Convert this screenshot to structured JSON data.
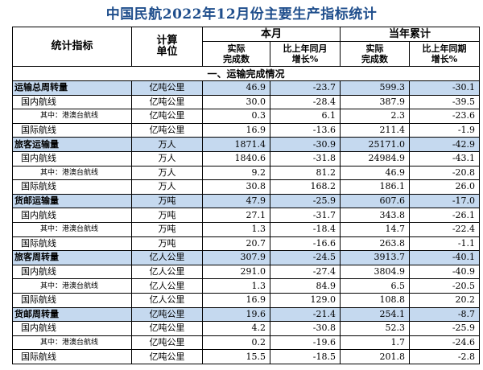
{
  "title": "中国民航2022年12月份主要生产指标统计",
  "header": {
    "indicator": "统计指标",
    "unit_line1": "计算",
    "unit_line2": "单位",
    "month": "本月",
    "ytd": "当年累计",
    "actual_line1": "实际",
    "actual_line2": "完成数",
    "yoy_month_line1": "比上年同月",
    "yoy_month_line2": "增长%",
    "actual2_line1": "实际",
    "actual2_line2": "完成数",
    "yoy_period_line1": "比上年同期",
    "yoy_period_line2": "增长%"
  },
  "section": "一、运输完成情况",
  "rows": [
    {
      "level": "cat",
      "name": "运输总周转量",
      "unit": "亿吨公里",
      "m_actual": "46.9",
      "m_yoy": "-23.7",
      "y_actual": "599.3",
      "y_yoy": "-30.1"
    },
    {
      "level": "sub",
      "name": "国内航线",
      "unit": "亿吨公里",
      "m_actual": "30.0",
      "m_yoy": "-28.4",
      "y_actual": "387.9",
      "y_yoy": "-39.5"
    },
    {
      "level": "subsub",
      "name": "其中：港澳台航线",
      "unit": "亿吨公里",
      "m_actual": "0.3",
      "m_yoy": "6.1",
      "y_actual": "2.3",
      "y_yoy": "-23.6"
    },
    {
      "level": "sub",
      "name": "国际航线",
      "unit": "亿吨公里",
      "m_actual": "16.9",
      "m_yoy": "-13.6",
      "y_actual": "211.4",
      "y_yoy": "-1.9"
    },
    {
      "level": "cat",
      "name": "旅客运输量",
      "unit": "万人",
      "m_actual": "1871.4",
      "m_yoy": "-30.9",
      "y_actual": "25171.0",
      "y_yoy": "-42.9"
    },
    {
      "level": "sub",
      "name": "国内航线",
      "unit": "万人",
      "m_actual": "1840.6",
      "m_yoy": "-31.8",
      "y_actual": "24984.9",
      "y_yoy": "-43.1"
    },
    {
      "level": "subsub",
      "name": "其中：港澳台航线",
      "unit": "万人",
      "m_actual": "9.2",
      "m_yoy": "81.2",
      "y_actual": "46.9",
      "y_yoy": "-20.8"
    },
    {
      "level": "sub",
      "name": "国际航线",
      "unit": "万人",
      "m_actual": "30.8",
      "m_yoy": "168.2",
      "y_actual": "186.1",
      "y_yoy": "26.0"
    },
    {
      "level": "cat",
      "name": "货邮运输量",
      "unit": "万吨",
      "m_actual": "47.9",
      "m_yoy": "-25.9",
      "y_actual": "607.6",
      "y_yoy": "-17.0"
    },
    {
      "level": "sub",
      "name": "国内航线",
      "unit": "万吨",
      "m_actual": "27.1",
      "m_yoy": "-31.7",
      "y_actual": "343.8",
      "y_yoy": "-26.1"
    },
    {
      "level": "subsub",
      "name": "其中：港澳台航线",
      "unit": "万吨",
      "m_actual": "1.3",
      "m_yoy": "-18.4",
      "y_actual": "14.7",
      "y_yoy": "-22.4"
    },
    {
      "level": "sub",
      "name": "国际航线",
      "unit": "万吨",
      "m_actual": "20.7",
      "m_yoy": "-16.6",
      "y_actual": "263.8",
      "y_yoy": "-1.1"
    },
    {
      "level": "cat",
      "name": "旅客周转量",
      "unit": "亿人公里",
      "m_actual": "307.9",
      "m_yoy": "-24.5",
      "y_actual": "3913.7",
      "y_yoy": "-40.1"
    },
    {
      "level": "sub",
      "name": "国内航线",
      "unit": "亿人公里",
      "m_actual": "291.0",
      "m_yoy": "-27.4",
      "y_actual": "3804.9",
      "y_yoy": "-40.9"
    },
    {
      "level": "subsub",
      "name": "其中：港澳台航线",
      "unit": "亿人公里",
      "m_actual": "1.3",
      "m_yoy": "84.9",
      "y_actual": "6.5",
      "y_yoy": "-20.5"
    },
    {
      "level": "sub",
      "name": "国际航线",
      "unit": "亿人公里",
      "m_actual": "16.9",
      "m_yoy": "129.0",
      "y_actual": "108.8",
      "y_yoy": "20.2"
    },
    {
      "level": "cat",
      "name": "货邮周转量",
      "unit": "亿吨公里",
      "m_actual": "19.6",
      "m_yoy": "-21.4",
      "y_actual": "254.1",
      "y_yoy": "-8.7"
    },
    {
      "level": "sub",
      "name": "国内航线",
      "unit": "亿吨公里",
      "m_actual": "4.2",
      "m_yoy": "-30.8",
      "y_actual": "52.3",
      "y_yoy": "-25.9"
    },
    {
      "level": "subsub",
      "name": "其中：港澳台航线",
      "unit": "亿吨公里",
      "m_actual": "0.2",
      "m_yoy": "-19.6",
      "y_actual": "1.7",
      "y_yoy": "-24.6"
    },
    {
      "level": "sub",
      "name": "国际航线",
      "unit": "亿吨公里",
      "m_actual": "15.5",
      "m_yoy": "-18.5",
      "y_actual": "201.8",
      "y_yoy": "-2.8"
    }
  ],
  "colors": {
    "title": "#1f4e8c",
    "category_row_bg": "#c5d9ef"
  }
}
